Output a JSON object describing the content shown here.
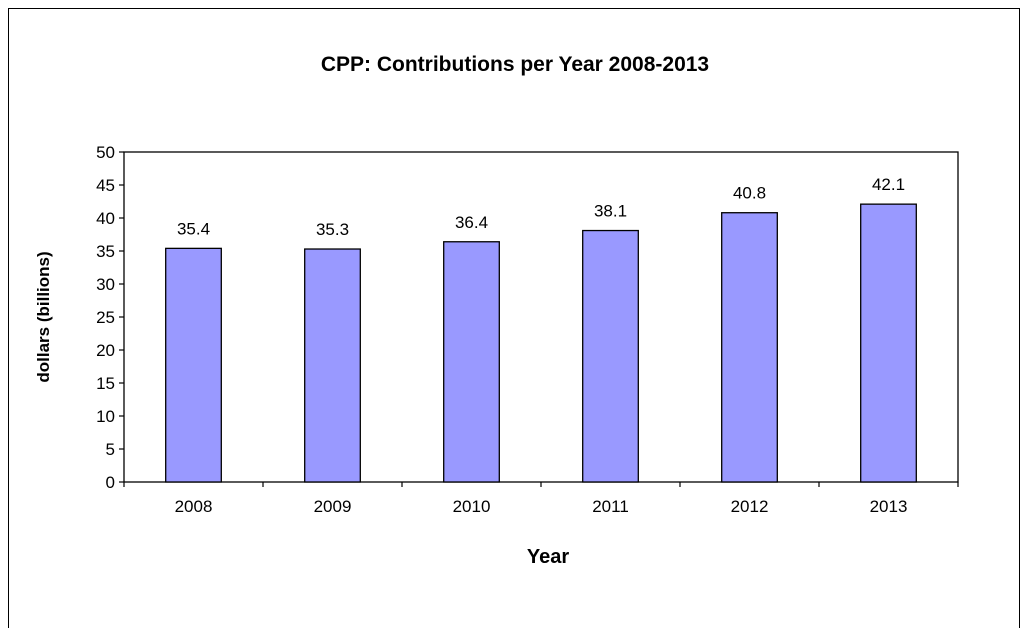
{
  "chart_data": {
    "type": "bar",
    "title": "CPP: Contributions  per Year 2008-2013",
    "xlabel": "Year",
    "ylabel": "dollars  (billions)",
    "categories": [
      "2008",
      "2009",
      "2010",
      "2011",
      "2012",
      "2013"
    ],
    "values": [
      35.4,
      35.3,
      36.4,
      38.1,
      40.8,
      42.1
    ],
    "data_labels": [
      "35.4",
      "35.3",
      "36.4",
      "38.1",
      "40.8",
      "42.1"
    ],
    "ylim": [
      0,
      50
    ],
    "yticks": [
      0,
      5,
      10,
      15,
      20,
      25,
      30,
      35,
      40,
      45,
      50
    ],
    "bar_color": "#9999ff",
    "bar_edge_color": "#000000",
    "grid": false,
    "legend": "none"
  }
}
